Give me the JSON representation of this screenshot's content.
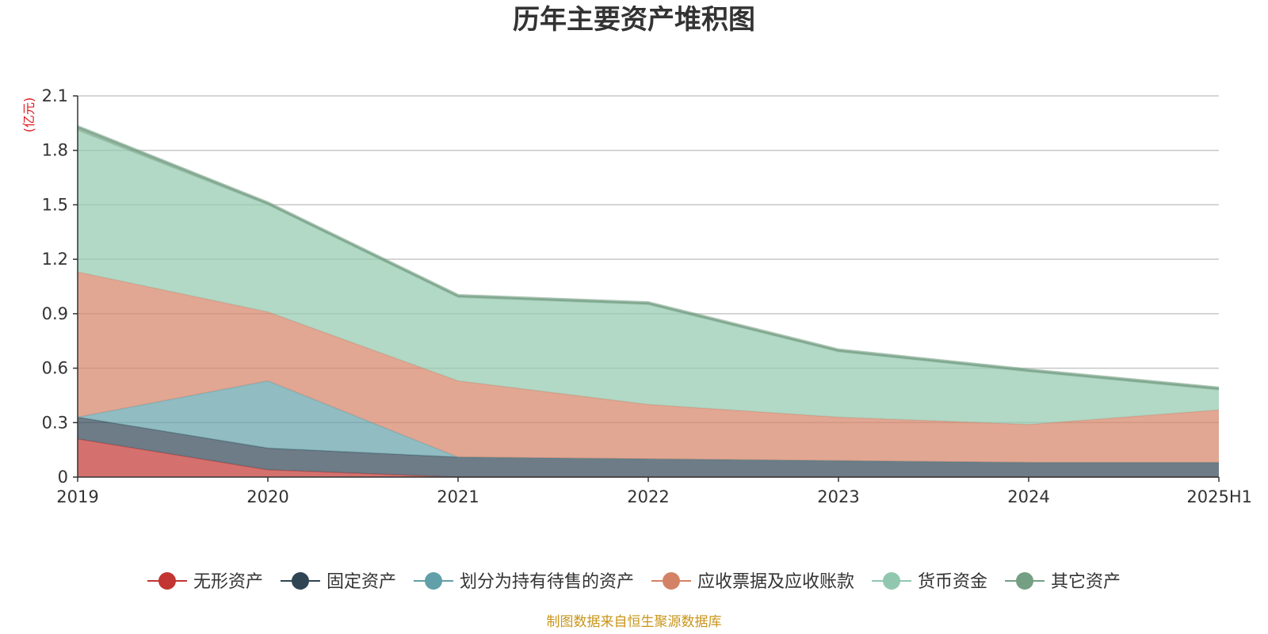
{
  "chart_data": {
    "type": "area",
    "stacked": true,
    "title": "历年主要资产堆积图",
    "unit": "(亿元)",
    "categories": [
      "2019",
      "2020",
      "2021",
      "2022",
      "2023",
      "2024",
      "2025H1"
    ],
    "ylim": [
      0,
      2.1
    ],
    "yticks": [
      "0",
      "0.3",
      "0.6",
      "0.9",
      "1.2",
      "1.5",
      "1.8",
      "2.1"
    ],
    "grid": true,
    "legend_position": "bottom",
    "series": [
      {
        "name": "无形资产",
        "color": "#c23531",
        "values": [
          0.21,
          0.04,
          0.0,
          0.0,
          0.0,
          0.0,
          0.0
        ]
      },
      {
        "name": "固定资产",
        "color": "#2f4554",
        "values": [
          0.12,
          0.12,
          0.11,
          0.1,
          0.09,
          0.08,
          0.08
        ]
      },
      {
        "name": "划分为持有待售的资产",
        "color": "#61a0a8",
        "values": [
          0.0,
          0.37,
          0.0,
          0.0,
          0.0,
          0.0,
          0.0
        ]
      },
      {
        "name": "应收票据及应收账款",
        "color": "#d48265",
        "values": [
          0.8,
          0.38,
          0.42,
          0.3,
          0.24,
          0.21,
          0.29
        ]
      },
      {
        "name": "货币资金",
        "color": "#91c7ae",
        "values": [
          0.78,
          0.59,
          0.46,
          0.55,
          0.36,
          0.29,
          0.11
        ]
      },
      {
        "name": "其它资产",
        "color": "#749f83",
        "values": [
          0.02,
          0.01,
          0.01,
          0.01,
          0.01,
          0.01,
          0.01
        ]
      }
    ]
  },
  "source": "制图数据来自恒生聚源数据库"
}
